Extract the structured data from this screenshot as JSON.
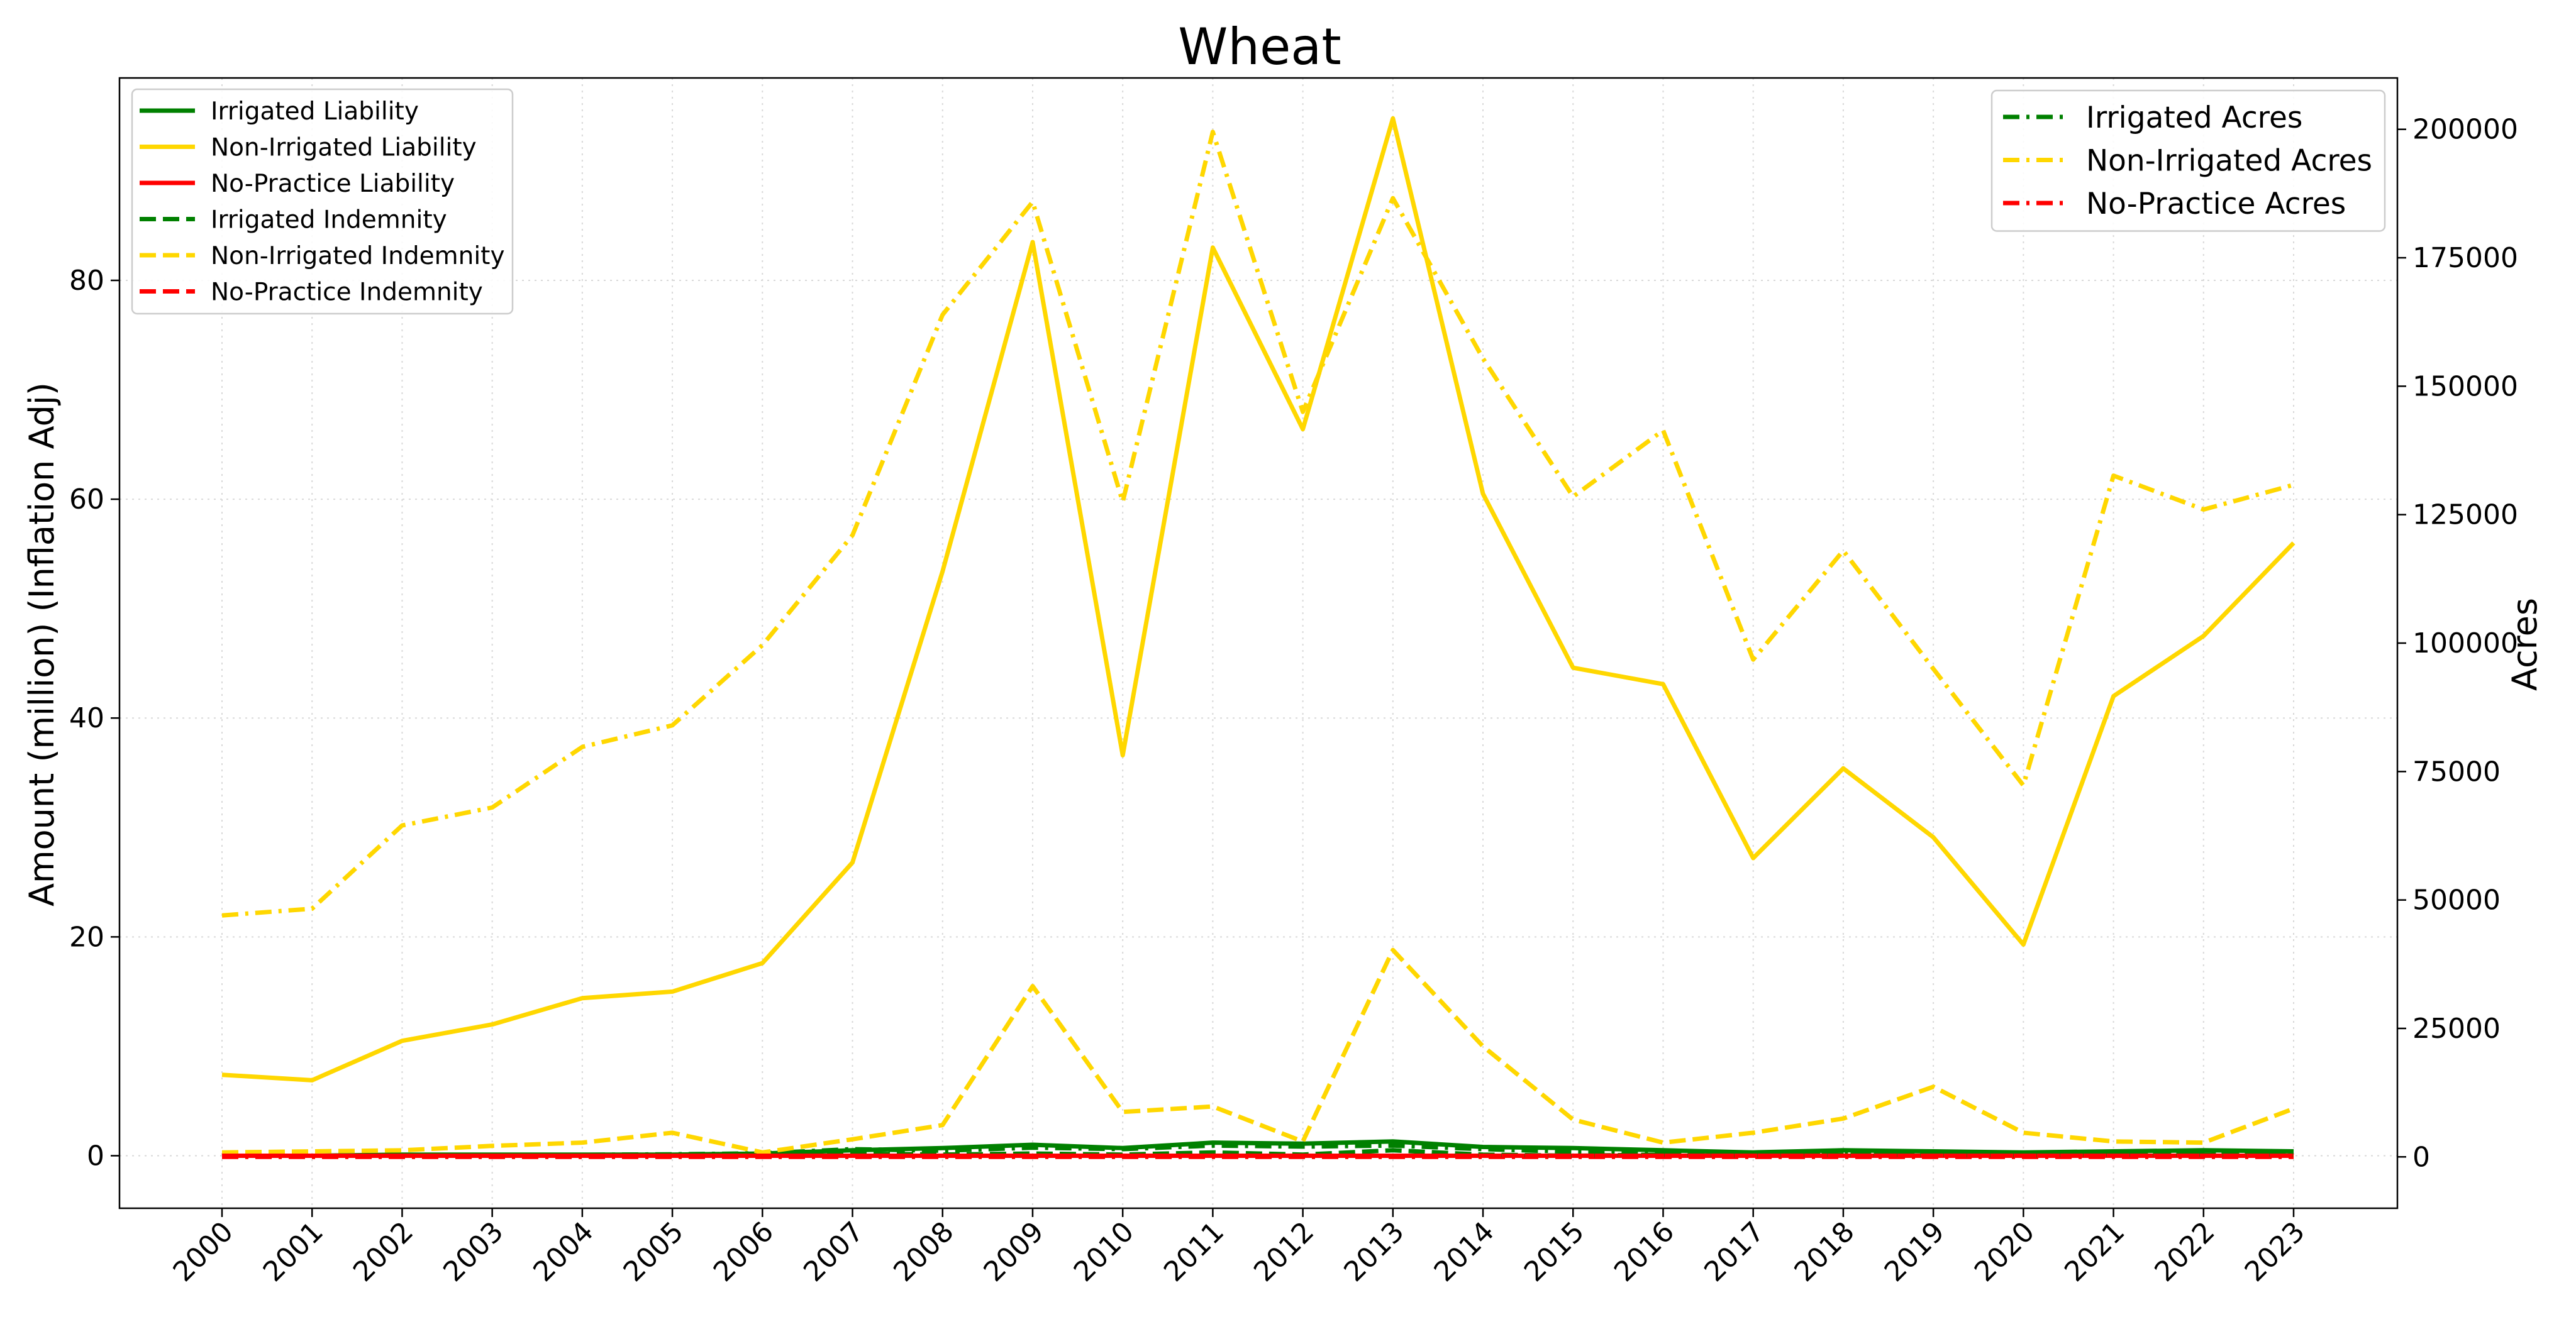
{
  "chart_data": {
    "type": "line",
    "title": "Wheat",
    "ylabel": "Amount (million) (Inflation Adj)",
    "y2label": "Acres",
    "x": [
      "2000",
      "2001",
      "2002",
      "2003",
      "2004",
      "2005",
      "2006",
      "2007",
      "2008",
      "2009",
      "2010",
      "2011",
      "2012",
      "2013",
      "2014",
      "2015",
      "2016",
      "2017",
      "2018",
      "2019",
      "2020",
      "2021",
      "2022",
      "2023"
    ],
    "ylim": [
      -4.8,
      98.5
    ],
    "y2lim": [
      -10000,
      210000
    ],
    "yticks": [
      0,
      20,
      40,
      60,
      80
    ],
    "y2ticks": [
      0,
      25000,
      50000,
      75000,
      100000,
      125000,
      150000,
      175000,
      200000
    ],
    "grid": true,
    "series": [
      {
        "name": "Irrigated Liability",
        "axis": "left",
        "style": "solid",
        "color": "#008000",
        "values": [
          0.0,
          0.0,
          0.1,
          0.1,
          0.1,
          0.1,
          0.2,
          0.5,
          0.7,
          1.0,
          0.7,
          1.2,
          1.1,
          1.3,
          0.8,
          0.7,
          0.5,
          0.3,
          0.5,
          0.4,
          0.3,
          0.4,
          0.5,
          0.4
        ]
      },
      {
        "name": "Non-Irrigated Liability",
        "axis": "left",
        "style": "solid",
        "color": "#FFD700",
        "values": [
          7.4,
          6.9,
          10.5,
          12.0,
          14.4,
          15.0,
          17.6,
          26.8,
          53.4,
          83.5,
          36.6,
          83.0,
          66.4,
          94.8,
          60.5,
          44.6,
          43.1,
          27.2,
          35.4,
          29.1,
          19.3,
          42.0,
          47.5,
          56.0
        ]
      },
      {
        "name": "No-Practice Liability",
        "axis": "left",
        "style": "solid",
        "color": "#FF0000",
        "values": [
          0.0,
          0.0,
          0.0,
          0.0,
          0.0,
          0.0,
          0.0,
          0.0,
          0.0,
          0.0,
          0.0,
          0.0,
          0.0,
          0.0,
          0.0,
          0.0,
          0.0,
          0.0,
          0.0,
          0.0,
          0.0,
          0.0,
          0.0,
          0.0
        ]
      },
      {
        "name": "Irrigated Indemnity",
        "axis": "left",
        "style": "dashed",
        "color": "#008000",
        "values": [
          0.0,
          0.0,
          0.0,
          0.0,
          0.0,
          0.0,
          0.0,
          0.2,
          0.1,
          0.2,
          0.1,
          0.3,
          0.1,
          0.5,
          0.1,
          0.0,
          0.1,
          0.0,
          0.1,
          0.1,
          0.0,
          0.1,
          0.1,
          0.1
        ]
      },
      {
        "name": "Non-Irrigated Indemnity",
        "axis": "left",
        "style": "dashed",
        "color": "#FFD700",
        "values": [
          0.3,
          0.4,
          0.5,
          0.9,
          1.2,
          2.1,
          0.3,
          1.5,
          2.8,
          15.5,
          4.0,
          4.5,
          1.3,
          18.8,
          10.0,
          3.3,
          1.2,
          2.1,
          3.4,
          6.3,
          2.1,
          1.3,
          1.2,
          4.3
        ]
      },
      {
        "name": "No-Practice Indemnity",
        "axis": "left",
        "style": "dashed",
        "color": "#FF0000",
        "values": [
          0.0,
          0.0,
          0.0,
          0.0,
          0.0,
          0.0,
          0.0,
          0.0,
          0.0,
          0.0,
          0.0,
          0.0,
          0.0,
          0.0,
          0.0,
          0.0,
          0.0,
          0.0,
          0.0,
          0.0,
          0.0,
          0.0,
          0.0,
          0.0
        ]
      },
      {
        "name": "Irrigated Acres",
        "axis": "right",
        "style": "dashdot",
        "color": "#008000",
        "values": [
          100,
          200,
          300,
          300,
          400,
          500,
          700,
          1500,
          1200,
          1800,
          1500,
          2200,
          2000,
          2200,
          1500,
          1000,
          800,
          600,
          900,
          700,
          600,
          800,
          900,
          800
        ]
      },
      {
        "name": "Non-Irrigated Acres",
        "axis": "right",
        "style": "dashdot",
        "color": "#FFD700",
        "values": [
          47000,
          48300,
          64500,
          68000,
          79800,
          84000,
          99600,
          121000,
          163900,
          185900,
          127500,
          199500,
          145000,
          186600,
          155400,
          128500,
          141400,
          96800,
          118000,
          95000,
          72300,
          132600,
          126000,
          130800
        ]
      },
      {
        "name": "No-Practice Acres",
        "axis": "right",
        "style": "dashdot",
        "color": "#FF0000",
        "values": [
          0,
          0,
          0,
          0,
          0,
          0,
          0,
          0,
          0,
          0,
          0,
          0,
          0,
          0,
          0,
          0,
          0,
          0,
          0,
          0,
          0,
          0,
          0,
          0
        ]
      }
    ],
    "legend_left": {
      "placement": "upper-left",
      "entries": [
        "Irrigated Liability",
        "Non-Irrigated Liability",
        "No-Practice Liability",
        "Irrigated Indemnity",
        "Non-Irrigated Indemnity",
        "No-Practice Indemnity"
      ]
    },
    "legend_right": {
      "placement": "upper-right",
      "entries": [
        "Irrigated Acres",
        "Non-Irrigated Acres",
        "No-Practice Acres"
      ]
    }
  }
}
